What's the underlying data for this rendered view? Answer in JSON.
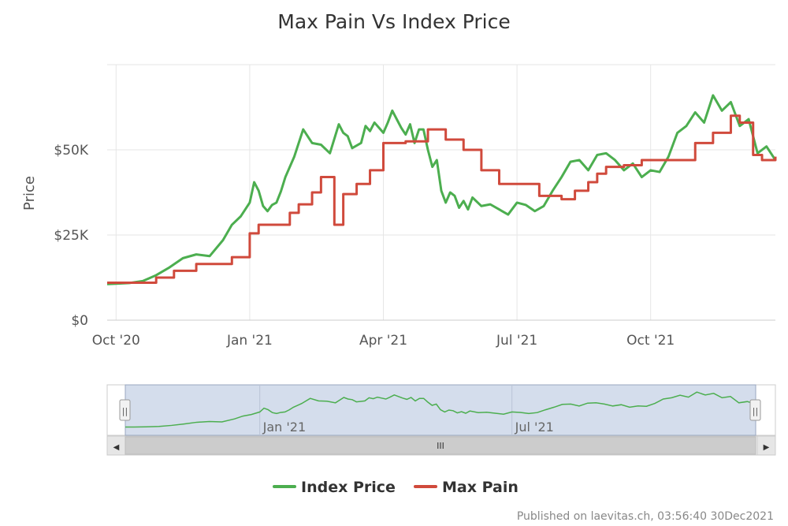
{
  "chart_data": {
    "type": "line",
    "title": "Max Pain Vs Index Price",
    "ylabel": "Price",
    "xlabel": "",
    "ylim": [
      0,
      75000
    ],
    "y_ticks": [
      {
        "value": 0,
        "label": "$0"
      },
      {
        "value": 25000,
        "label": "$25K"
      },
      {
        "value": 50000,
        "label": "$50K"
      }
    ],
    "x_ticks": [
      {
        "value": 0,
        "label": "Oct '20"
      },
      {
        "value": 3,
        "label": "Jan '21"
      },
      {
        "value": 6,
        "label": "Apr '21"
      },
      {
        "value": 9,
        "label": "Jul '21"
      },
      {
        "value": 12,
        "label": "Oct '21"
      }
    ],
    "xlim": [
      -0.2,
      14.8
    ],
    "x_unit": "months since Oct 1 2020",
    "legend_position": "bottom-center",
    "series": [
      {
        "name": "Index Price",
        "color": "#4cae4f",
        "x": [
          -0.2,
          0,
          0.3,
          0.6,
          0.9,
          1.2,
          1.5,
          1.8,
          2.1,
          2.4,
          2.6,
          2.8,
          3.0,
          3.1,
          3.2,
          3.3,
          3.4,
          3.5,
          3.6,
          3.7,
          3.8,
          4.0,
          4.2,
          4.4,
          4.6,
          4.8,
          5.0,
          5.1,
          5.2,
          5.3,
          5.5,
          5.6,
          5.7,
          5.8,
          5.9,
          6.0,
          6.1,
          6.2,
          6.3,
          6.4,
          6.5,
          6.6,
          6.7,
          6.8,
          6.9,
          7.0,
          7.1,
          7.2,
          7.3,
          7.4,
          7.5,
          7.6,
          7.7,
          7.8,
          7.9,
          8.0,
          8.2,
          8.4,
          8.6,
          8.8,
          9.0,
          9.2,
          9.4,
          9.6,
          9.8,
          10.0,
          10.2,
          10.4,
          10.6,
          10.8,
          11.0,
          11.2,
          11.4,
          11.6,
          11.8,
          12.0,
          12.2,
          12.4,
          12.6,
          12.8,
          13.0,
          13.2,
          13.4,
          13.6,
          13.8,
          14.0,
          14.2,
          14.4,
          14.6,
          14.8
        ],
        "values": [
          10600,
          10700,
          10900,
          11500,
          13200,
          15500,
          18200,
          19300,
          18800,
          23500,
          28000,
          30500,
          34500,
          40500,
          38000,
          33500,
          32000,
          33800,
          34500,
          37800,
          42000,
          48000,
          56000,
          52000,
          51500,
          49000,
          57500,
          55000,
          54000,
          50500,
          52000,
          57000,
          55500,
          58000,
          56500,
          55000,
          58000,
          61500,
          59000,
          56500,
          54500,
          57500,
          52000,
          56000,
          56000,
          50000,
          45000,
          47000,
          38000,
          34500,
          37500,
          36500,
          33000,
          35000,
          32500,
          36000,
          33500,
          34000,
          32500,
          31000,
          34500,
          33800,
          32000,
          33500,
          38000,
          42000,
          46500,
          47000,
          44000,
          48500,
          49000,
          47000,
          44000,
          46000,
          42000,
          44000,
          43500,
          48000,
          55000,
          57000,
          61000,
          58000,
          66000,
          61500,
          64000,
          57000,
          59000,
          49000,
          51000,
          47000
        ]
      },
      {
        "name": "Max Pain",
        "color": "#d04a3c",
        "x": [
          -0.2,
          0.5,
          0.9,
          1.3,
          1.8,
          2.6,
          3.0,
          3.2,
          3.6,
          3.9,
          4.1,
          4.4,
          4.6,
          4.9,
          5.1,
          5.4,
          5.7,
          6.0,
          6.5,
          7.0,
          7.4,
          7.8,
          8.2,
          8.6,
          9.0,
          9.5,
          10.0,
          10.3,
          10.6,
          10.8,
          11.0,
          11.4,
          11.8,
          12.5,
          13.0,
          13.4,
          13.8,
          14.0,
          14.3,
          14.5,
          14.8
        ],
        "values": [
          11000,
          11000,
          12500,
          14500,
          16500,
          18500,
          25500,
          28000,
          28000,
          31500,
          34000,
          37500,
          42000,
          28000,
          37000,
          40000,
          44000,
          52000,
          52500,
          56000,
          53000,
          50000,
          44000,
          40000,
          40000,
          36500,
          35500,
          38000,
          40500,
          43000,
          45000,
          45500,
          47000,
          47000,
          52000,
          55000,
          60000,
          58000,
          48500,
          47000,
          48000
        ]
      }
    ]
  },
  "navigator": {
    "ticks": [
      {
        "value": 3,
        "label": "Jan '21"
      },
      {
        "value": 9,
        "label": "Jul '21"
      }
    ],
    "scroll_grip": "III",
    "left_arrow": "◀",
    "right_arrow": "▶",
    "handle_left_glyph": "||",
    "handle_right_glyph": "||"
  },
  "legend": [
    {
      "label": "Index Price",
      "color": "#4cae4f"
    },
    {
      "label": "Max Pain",
      "color": "#d04a3c"
    }
  ],
  "credit": "Published on laevitas.ch, 03:56:40 30Dec2021"
}
